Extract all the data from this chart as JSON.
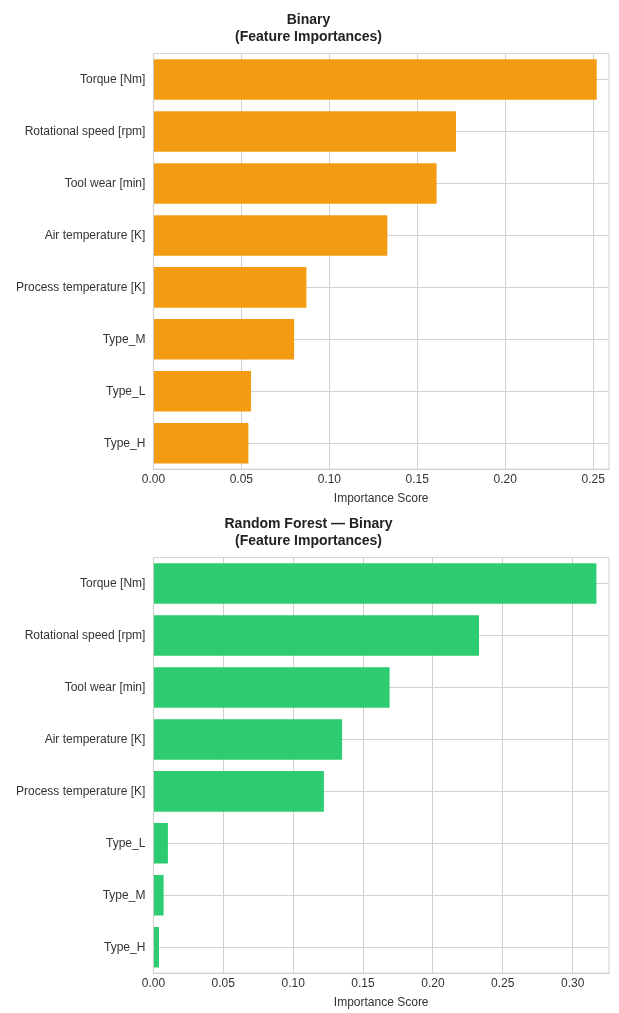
{
  "chart_data": [
    {
      "type": "bar",
      "orientation": "horizontal",
      "title": "Binary\n(Feature Importances)",
      "xlabel": "Importance Score",
      "categories": [
        "Torque [Nm]",
        "Rotational speed [rpm]",
        "Tool wear [min]",
        "Air temperature [K]",
        "Process temperature [K]",
        "Type_M",
        "Type_L",
        "Type_H"
      ],
      "values": [
        0.252,
        0.172,
        0.161,
        0.133,
        0.087,
        0.08,
        0.0555,
        0.054
      ],
      "color": "#f39c12",
      "xlim": [
        0,
        0.259
      ],
      "xticks": [
        {
          "value": 0,
          "label": "0.00"
        },
        {
          "value": 0.05,
          "label": "0.05"
        },
        {
          "value": 0.1,
          "label": "0.10"
        },
        {
          "value": 0.15,
          "label": "0.15"
        },
        {
          "value": 0.2,
          "label": "0.20"
        },
        {
          "value": 0.25,
          "label": "0.25"
        }
      ],
      "grid": true,
      "legend": false
    },
    {
      "type": "bar",
      "orientation": "horizontal",
      "title": "Random Forest — Binary\n(Feature Importances)",
      "xlabel": "Importance Score",
      "categories": [
        "Torque [Nm]",
        "Rotational speed [rpm]",
        "Tool wear [min]",
        "Air temperature [K]",
        "Process temperature [K]",
        "Type_L",
        "Type_M",
        "Type_H"
      ],
      "values": [
        0.317,
        0.233,
        0.169,
        0.135,
        0.122,
        0.0104,
        0.0073,
        0.004
      ],
      "color": "#2ecc71",
      "xlim": [
        0,
        0.326
      ],
      "xticks": [
        {
          "value": 0,
          "label": "0.00"
        },
        {
          "value": 0.05,
          "label": "0.05"
        },
        {
          "value": 0.1,
          "label": "0.10"
        },
        {
          "value": 0.15,
          "label": "0.15"
        },
        {
          "value": 0.2,
          "label": "0.20"
        },
        {
          "value": 0.25,
          "label": "0.25"
        },
        {
          "value": 0.3,
          "label": "0.30"
        }
      ],
      "grid": true,
      "legend": false
    }
  ]
}
